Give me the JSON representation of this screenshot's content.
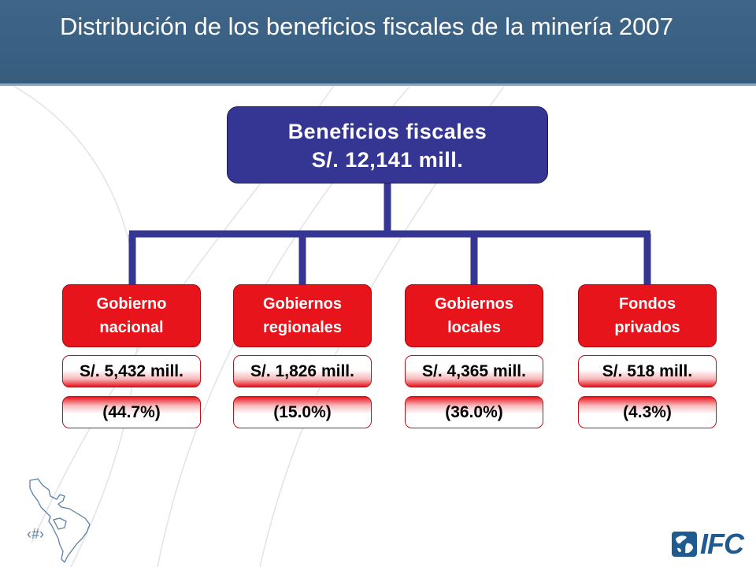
{
  "slide": {
    "title": "Distribución de los beneficios fiscales de la minería 2007",
    "slide_number": "‹#›",
    "logo_text": "IFC",
    "colors": {
      "header": "#3f6688",
      "root": "#353593",
      "node": "#e8141c"
    }
  },
  "diagram": {
    "root": {
      "line1": "Beneficios fiscales",
      "line2": "S/. 12,141 mill."
    },
    "nodes": [
      {
        "line1": "Gobierno",
        "line2": "nacional",
        "amount": "S/. 5,432 mill.",
        "share": "(44.7%)"
      },
      {
        "line1": "Gobiernos",
        "line2": "regionales",
        "amount": "S/. 1,826 mill.",
        "share": "(15.0%)"
      },
      {
        "line1": "Gobiernos",
        "line2": "locales",
        "amount": "S/. 4,365 mill.",
        "share": "(36.0%)"
      },
      {
        "line1": "Fondos",
        "line2": "privados",
        "amount": "S/. 518 mill.",
        "share": "(4.3%)"
      }
    ]
  }
}
